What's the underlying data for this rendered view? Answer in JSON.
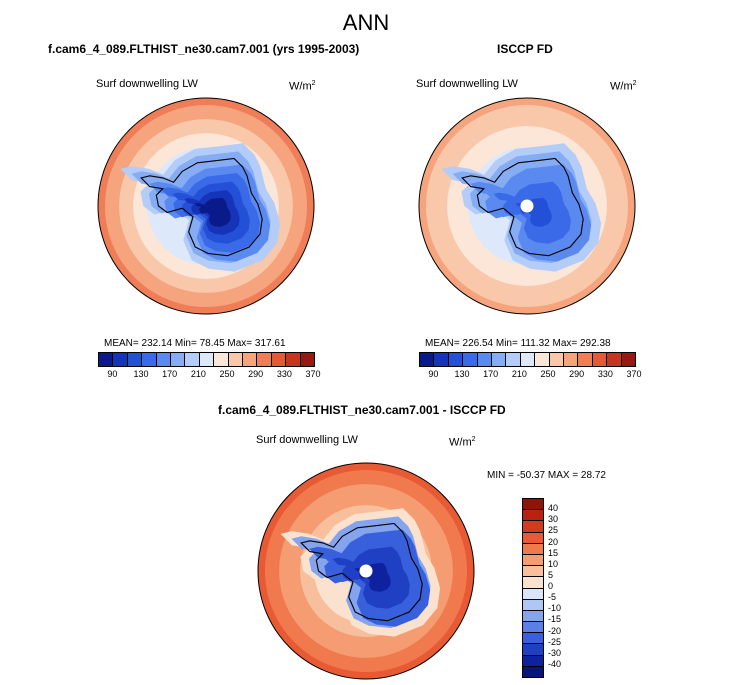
{
  "main_title": "ANN",
  "panels": [
    {
      "title": "f.cam6_4_089.FLTHIST_ne30.cam7.001 (yrs 1995-2003)",
      "variable": "Surf downwelling LW",
      "units_base": "W/m",
      "units_exp": "2",
      "stats": "MEAN= 232.14  Min=  78.45  Max= 317.61",
      "colorbar_ticks": [
        "90",
        "130",
        "170",
        "210",
        "250",
        "290",
        "330",
        "370"
      ]
    },
    {
      "title": "ISCCP FD",
      "variable": "Surf downwelling LW",
      "units_base": "W/m",
      "units_exp": "2",
      "stats": "MEAN= 226.54  Min= 111.32  Max= 292.38",
      "colorbar_ticks": [
        "90",
        "130",
        "170",
        "210",
        "250",
        "290",
        "330",
        "370"
      ]
    },
    {
      "title": "f.cam6_4_089.FLTHIST_ne30.cam7.001 - ISCCP FD",
      "variable": "Surf downwelling LW",
      "units_base": "W/m",
      "units_exp": "2",
      "stats": "MIN = -50.37 MAX =  28.72",
      "colorbar_ticks": [
        "40",
        "30",
        "25",
        "20",
        "15",
        "10",
        "5",
        "0",
        "-5",
        "-10",
        "-15",
        "-20",
        "-25",
        "-30",
        "-40"
      ]
    }
  ],
  "colors": {
    "abs_scale": [
      "#0a1a8a",
      "#1634b8",
      "#2450d8",
      "#3a6ae8",
      "#5a8af0",
      "#86acf4",
      "#b4cdf8",
      "#dde8fa",
      "#fbe6d8",
      "#f9c8aa",
      "#f5a47e",
      "#ef7e58",
      "#e35a38",
      "#c63422",
      "#961a12"
    ],
    "diff_scale": [
      "#8c1408",
      "#b8220e",
      "#d63a1e",
      "#e85a34",
      "#f07a4e",
      "#f59c72",
      "#f8bf9c",
      "#fbe2cf",
      "#dbe5f8",
      "#b0c6f4",
      "#84a4ee",
      "#5a80e6",
      "#3860dc",
      "#2040c4",
      "#0e22a0",
      "#08147c"
    ]
  },
  "chart_data": [
    {
      "type": "heatmap",
      "projection": "south-polar-stereographic",
      "title": "f.cam6_4_089.FLTHIST_ne30.cam7.001 (yrs 1995-2003)",
      "variable": "Surf downwelling LW",
      "units": "W/m2",
      "mean": 232.14,
      "min": 78.45,
      "max": 317.61,
      "colorbar_levels": [
        90,
        130,
        170,
        210,
        250,
        290,
        330,
        370
      ],
      "colorbar_range": [
        70,
        390
      ],
      "field": {
        "equator_value": 310,
        "pole_value": 85,
        "ice_edge_value": 210,
        "data_gap_at_pole": false
      }
    },
    {
      "type": "heatmap",
      "projection": "south-polar-stereographic",
      "title": "ISCCP FD",
      "variable": "Surf downwelling LW",
      "units": "W/m2",
      "mean": 226.54,
      "min": 111.32,
      "max": 292.38,
      "colorbar_levels": [
        90,
        130,
        170,
        210,
        250,
        290,
        330,
        370
      ],
      "colorbar_range": [
        70,
        390
      ],
      "field": {
        "equator_value": 290,
        "pole_value": 125,
        "ice_edge_value": 215,
        "data_gap_at_pole": true
      }
    },
    {
      "type": "heatmap",
      "projection": "south-polar-stereographic",
      "title": "f.cam6_4_089.FLTHIST_ne30.cam7.001 - ISCCP FD",
      "variable": "Surf downwelling LW",
      "units": "W/m2",
      "min": -50.37,
      "max": 28.72,
      "colorbar_levels": [
        -40,
        -30,
        -25,
        -20,
        -15,
        -10,
        -5,
        0,
        5,
        10,
        15,
        20,
        25,
        30,
        40
      ],
      "field": {
        "ocean_value": 22,
        "ice_edge_value": 3,
        "antarctica_value": -32,
        "data_gap_at_pole": true
      }
    }
  ]
}
